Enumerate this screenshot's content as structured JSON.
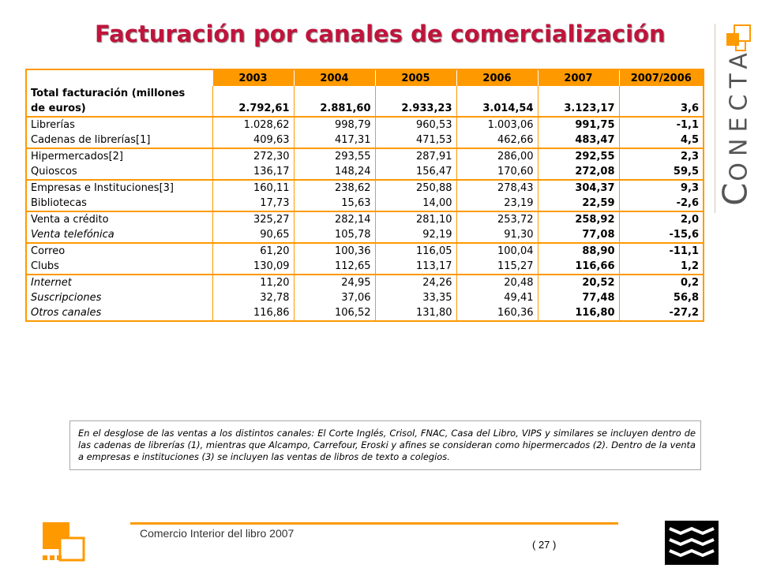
{
  "title": "Facturación por canales de comercialización",
  "brand": {
    "word_first": "C",
    "word_rest": "ONECTA"
  },
  "table": {
    "headers": [
      "",
      "2003",
      "2004",
      "2005",
      "2006",
      "2007",
      "2007/2006"
    ],
    "total": {
      "label_line1": "Total facturación (millones",
      "label_line2": "de euros)",
      "values": [
        "2.792,61",
        "2.881,60",
        "2.933,23",
        "3.014,54",
        "3.123,17",
        "3,6"
      ]
    },
    "groups": [
      [
        {
          "label": "Librerías",
          "italic": false,
          "values": [
            "1.028,62",
            "998,79",
            "960,53",
            "1.003,06",
            "991,75",
            "-1,1"
          ]
        },
        {
          "label": "Cadenas de librerías[1]",
          "italic": false,
          "values": [
            "409,63",
            "417,31",
            "471,53",
            "462,66",
            "483,47",
            "4,5"
          ]
        }
      ],
      [
        {
          "label": "Hipermercados[2]",
          "italic": false,
          "values": [
            "272,30",
            "293,55",
            "287,91",
            "286,00",
            "292,55",
            "2,3"
          ]
        },
        {
          "label": "Quioscos",
          "italic": false,
          "values": [
            "136,17",
            "148,24",
            "156,47",
            "170,60",
            "272,08",
            "59,5"
          ]
        }
      ],
      [
        {
          "label": "Empresas e Instituciones[3]",
          "italic": false,
          "values": [
            "160,11",
            "238,62",
            "250,88",
            "278,43",
            "304,37",
            "9,3"
          ]
        },
        {
          "label": "Bibliotecas",
          "italic": false,
          "values": [
            "17,73",
            "15,63",
            "14,00",
            "23,19",
            "22,59",
            "-2,6"
          ]
        }
      ],
      [
        {
          "label": "Venta a crédito",
          "italic": false,
          "values": [
            "325,27",
            "282,14",
            "281,10",
            "253,72",
            "258,92",
            "2,0"
          ]
        },
        {
          "label": "Venta telefónica",
          "italic": true,
          "values": [
            "90,65",
            "105,78",
            "92,19",
            "91,30",
            "77,08",
            "-15,6"
          ]
        }
      ],
      [
        {
          "label": "Correo",
          "italic": false,
          "values": [
            "61,20",
            "100,36",
            "116,05",
            "100,04",
            "88,90",
            "-11,1"
          ]
        },
        {
          "label": "Clubs",
          "italic": false,
          "values": [
            "130,09",
            "112,65",
            "113,17",
            "115,27",
            "116,66",
            "1,2"
          ]
        }
      ],
      [
        {
          "label": "Internet",
          "italic": true,
          "values": [
            "11,20",
            "24,95",
            "24,26",
            "20,48",
            "20,52",
            "0,2"
          ]
        },
        {
          "label": "Suscripciones",
          "italic": true,
          "values": [
            "32,78",
            "37,06",
            "33,35",
            "49,41",
            "77,48",
            "56,8"
          ]
        },
        {
          "label": "Otros canales",
          "italic": true,
          "values": [
            "116,86",
            "106,52",
            "131,80",
            "160,36",
            "116,80",
            "-27,2"
          ]
        }
      ]
    ]
  },
  "note": "En el desglose de las ventas a los distintos canales: El Corte Inglés, Crisol, FNAC, Casa del Libro, VIPS y similares se incluyen dentro de las cadenas de librerías (1), mientras que Alcampo, Carrefour, Eroski y afines se consideran como hipermercados (2). Dentro de la venta a empresas e instituciones (3) se incluyen las ventas de libros de texto a colegios.",
  "footer": {
    "text": "Comercio Interior del libro 2007",
    "page": "( 27 )"
  },
  "colors": {
    "accent": "#ff9900",
    "title": "#c0143c"
  }
}
